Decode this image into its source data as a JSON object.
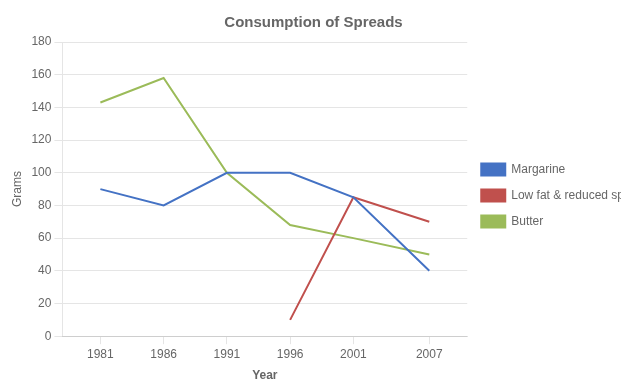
{
  "chart_data": {
    "type": "line",
    "title": "Consumption of Spreads",
    "xlabel": "Year",
    "ylabel": "Grams",
    "x": [
      1981,
      1986,
      1991,
      1996,
      2001,
      2007
    ],
    "series": [
      {
        "name": "Margarine",
        "color": "#4472C4",
        "values": [
          90,
          80,
          100,
          100,
          85,
          40
        ]
      },
      {
        "name": "Low fat & reduced spreads",
        "color": "#C0504D",
        "values": [
          null,
          null,
          null,
          10,
          85,
          70
        ]
      },
      {
        "name": "Butter",
        "color": "#9BBB59",
        "values": [
          143,
          158,
          100,
          68,
          60,
          50
        ]
      }
    ],
    "xlim": [
      1978,
      2010
    ],
    "xticks": [
      1981,
      1986,
      1991,
      1996,
      2001,
      2007
    ],
    "ylim": [
      0,
      180
    ],
    "yticks": [
      0,
      20,
      40,
      60,
      80,
      100,
      120,
      140,
      160,
      180
    ],
    "grid": "y",
    "legend": "right"
  }
}
